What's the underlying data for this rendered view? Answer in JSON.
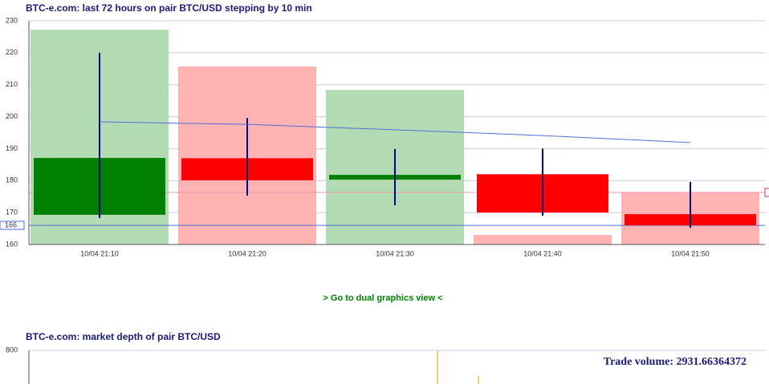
{
  "chart_data": [
    {
      "type": "candlestick",
      "title": "BTC-e.com: last 72 hours on pair BTC/USD stepping by 10 min",
      "categories": [
        "10/04 21:10",
        "10/04 21:20",
        "10/04 21:30",
        "10/04 21:40",
        "10/04 21:50"
      ],
      "open": [
        169.3,
        187,
        180.3,
        182,
        169.5
      ],
      "high": [
        220,
        199.6,
        189.9,
        190,
        179.6
      ],
      "low": [
        168.3,
        175.3,
        172.3,
        169,
        165.3
      ],
      "close": [
        187.1,
        180.1,
        181.8,
        170,
        166
      ],
      "volume": [
        227.2,
        215.7,
        208.4,
        163,
        176.3
      ],
      "up_color": "#008000",
      "down_color": "#ff0000",
      "volume_up_color": "#b3dbb3",
      "volume_down_color": "#ffb3b3",
      "wick_color": "#000080",
      "moving_average": {
        "values": [
          198.4,
          197.6,
          195.9,
          194.1,
          191.9
        ],
        "color": "#4f6fd8"
      },
      "reference_lines": [
        {
          "value": 166,
          "color": "#4f6fd8"
        },
        {
          "value": 176.3,
          "color": "#e89aa8"
        }
      ],
      "ylim": [
        160,
        230
      ],
      "yticks": [
        160,
        170,
        180,
        190,
        200,
        210,
        220,
        230
      ],
      "grid": true
    },
    {
      "type": "depth",
      "title": "BTC-e.com: market depth of pair BTC/USD",
      "annotation": "Trade volume: 2931.66364372",
      "ylim": [
        0,
        800
      ],
      "yticks": [
        800
      ],
      "grid": true
    }
  ],
  "link": "> Go to dual graphics view <"
}
